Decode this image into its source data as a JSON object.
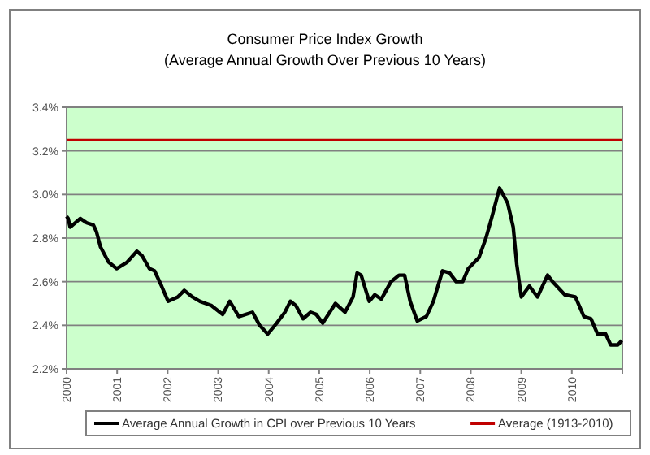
{
  "chart_data": {
    "type": "line",
    "title": "Consumer Price Index Growth",
    "subtitle": "(Average Annual Growth Over Previous 10 Years)",
    "xlim": [
      2000,
      2011
    ],
    "xticks": [
      2000,
      2001,
      2002,
      2003,
      2004,
      2005,
      2006,
      2007,
      2008,
      2009,
      2010,
      {
        "value": 2011,
        "label": null
      }
    ],
    "ylim": [
      2.2,
      3.4
    ],
    "yticks": [
      {
        "value": 2.2,
        "label": "2.2%"
      },
      {
        "value": 2.4,
        "label": "2.4%"
      },
      {
        "value": 2.6,
        "label": "2.6%"
      },
      {
        "value": 2.8,
        "label": "2.8%"
      },
      {
        "value": 3.0,
        "label": "3.0%"
      },
      {
        "value": 3.2,
        "label": "3.2%"
      },
      {
        "value": 3.4,
        "label": "3.4%"
      }
    ],
    "grid": "y",
    "legend": "bottom",
    "marker": "none",
    "line_style": "solid",
    "series": [
      {
        "name": "Average Annual Growth in CPI over Previous 10 Years",
        "color": "#000000",
        "x": [
          2000,
          2000.03,
          2000.07,
          2000.27,
          2000.4,
          2000.53,
          2000.59,
          2000.67,
          2000.83,
          2000.99,
          2001.2,
          2001.39,
          2001.49,
          2001.64,
          2001.74,
          2001.88,
          2002.01,
          2002.2,
          2002.33,
          2002.49,
          2002.64,
          2002.87,
          2003.09,
          2003.23,
          2003.41,
          2003.68,
          2003.82,
          2003.98,
          2004.16,
          2004.32,
          2004.43,
          2004.54,
          2004.68,
          2004.83,
          2004.94,
          2005.07,
          2005.32,
          2005.51,
          2005.67,
          2005.75,
          2005.83,
          2005.99,
          2006.1,
          2006.23,
          2006.42,
          2006.58,
          2006.69,
          2006.8,
          2006.94,
          2007.12,
          2007.26,
          2007.44,
          2007.58,
          2007.71,
          2007.84,
          2007.95,
          2008.16,
          2008.3,
          2008.41,
          2008.57,
          2008.73,
          2008.84,
          2008.91,
          2009,
          2009.16,
          2009.32,
          2009.52,
          2009.62,
          2009.86,
          2010.07,
          2010.24,
          2010.38,
          2010.51,
          2010.67,
          2010.77,
          2010.91,
          2010.99
        ],
        "values": [
          2.9,
          2.89,
          2.85,
          2.89,
          2.87,
          2.86,
          2.83,
          2.76,
          2.69,
          2.66,
          2.69,
          2.74,
          2.72,
          2.66,
          2.65,
          2.58,
          2.51,
          2.53,
          2.56,
          2.53,
          2.51,
          2.49,
          2.45,
          2.51,
          2.44,
          2.46,
          2.4,
          2.36,
          2.41,
          2.46,
          2.51,
          2.49,
          2.43,
          2.46,
          2.45,
          2.41,
          2.5,
          2.46,
          2.53,
          2.64,
          2.63,
          2.51,
          2.54,
          2.52,
          2.6,
          2.63,
          2.63,
          2.51,
          2.42,
          2.44,
          2.51,
          2.65,
          2.64,
          2.6,
          2.6,
          2.66,
          2.71,
          2.8,
          2.89,
          3.03,
          2.96,
          2.85,
          2.68,
          2.53,
          2.58,
          2.53,
          2.63,
          2.6,
          2.54,
          2.53,
          2.44,
          2.43,
          2.36,
          2.36,
          2.31,
          2.31,
          2.33
        ]
      },
      {
        "name": "Average (1913-2010)",
        "color": "#c00000",
        "x": [
          2000,
          2011
        ],
        "values": [
          3.25,
          3.25
        ]
      }
    ]
  }
}
